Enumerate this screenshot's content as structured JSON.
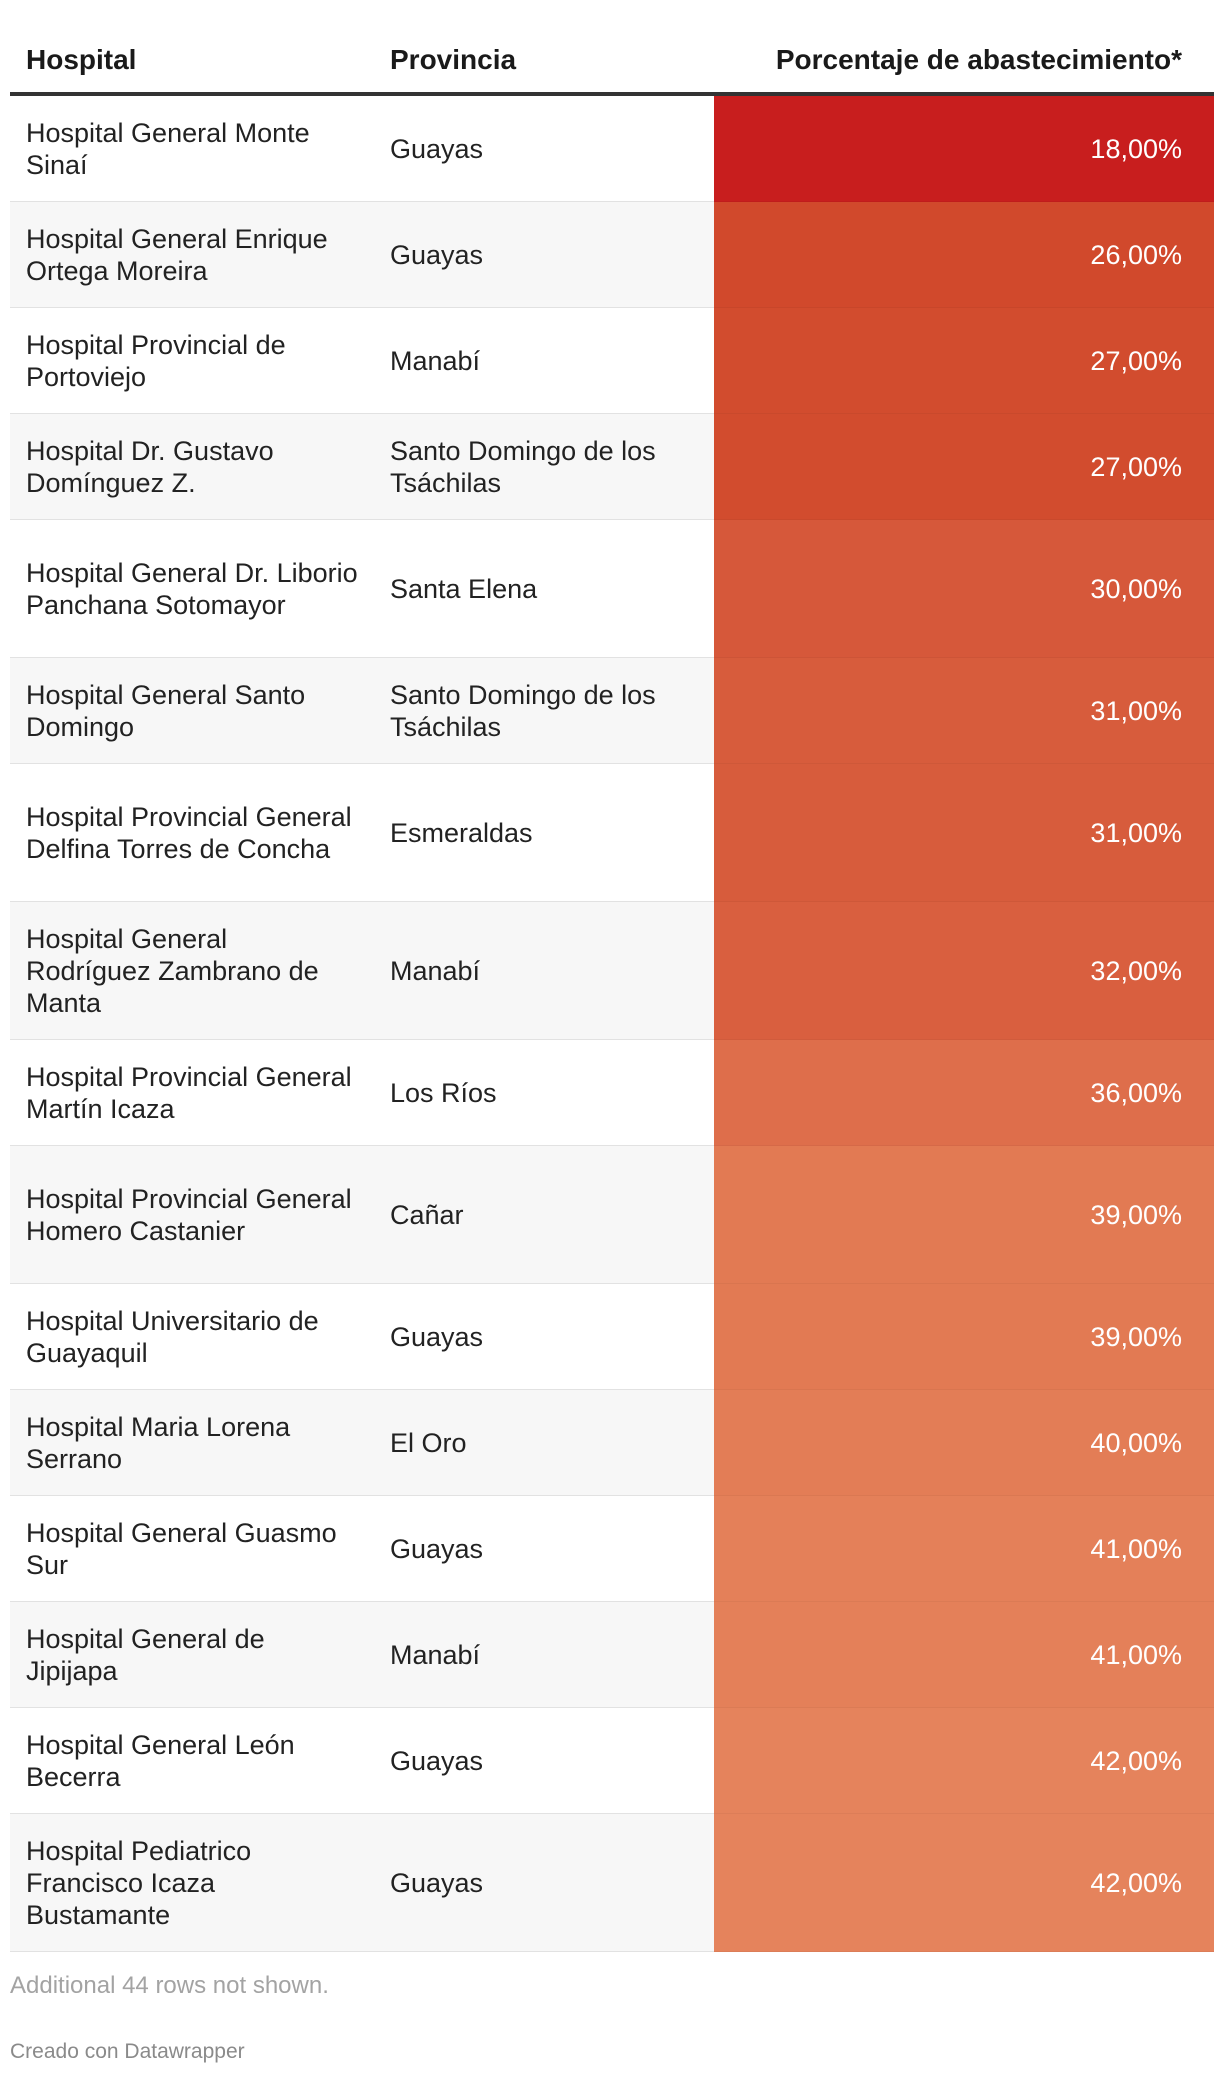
{
  "table": {
    "headers": {
      "hospital": "Hospital",
      "provincia": "Provincia",
      "porcentaje": "Porcentaje de abastecimiento*"
    },
    "rows": [
      {
        "hospital": "Hospital General Monte Sinaí",
        "provincia": "Guayas",
        "porcentaje": "18,00%",
        "value": 18,
        "color": "#c81e1e"
      },
      {
        "hospital": "Hospital General Enrique Ortega Moreira",
        "provincia": "Guayas",
        "porcentaje": "26,00%",
        "value": 26,
        "color": "#d1492c"
      },
      {
        "hospital": "Hospital Provincial de Portoviejo",
        "provincia": "Manabí",
        "porcentaje": "27,00%",
        "value": 27,
        "color": "#d24c2e"
      },
      {
        "hospital": "Hospital Dr. Gustavo Domínguez Z.",
        "provincia": "Santo Domingo de los Tsáchilas",
        "porcentaje": "27,00%",
        "value": 27,
        "color": "#d24c2e"
      },
      {
        "hospital": "Hospital General Dr. Liborio Panchana Sotomayor",
        "provincia": "Santa Elena",
        "porcentaje": "30,00%",
        "value": 30,
        "color": "#d6583a"
      },
      {
        "hospital": "Hospital General Santo Domingo",
        "provincia": "Santo Domingo de los Tsáchilas",
        "porcentaje": "31,00%",
        "value": 31,
        "color": "#d75c3c"
      },
      {
        "hospital": "Hospital Provincial General Delfina Torres de Concha",
        "provincia": "Esmeraldas",
        "porcentaje": "31,00%",
        "value": 31,
        "color": "#d75c3c"
      },
      {
        "hospital": "Hospital General Rodríguez Zambrano de Manta",
        "provincia": "Manabí",
        "porcentaje": "32,00%",
        "value": 32,
        "color": "#d95f3f"
      },
      {
        "hospital": "Hospital Provincial General Martín Icaza",
        "provincia": "Los Ríos",
        "porcentaje": "36,00%",
        "value": 36,
        "color": "#de6e4b"
      },
      {
        "hospital": "Hospital Provincial General Homero Castanier",
        "provincia": "Cañar",
        "porcentaje": "39,00%",
        "value": 39,
        "color": "#e27a53"
      },
      {
        "hospital": "Hospital Universitario de Guayaquil",
        "provincia": "Guayas",
        "porcentaje": "39,00%",
        "value": 39,
        "color": "#e27a53"
      },
      {
        "hospital": "Hospital Maria Lorena Serrano",
        "provincia": "El Oro",
        "porcentaje": "40,00%",
        "value": 40,
        "color": "#e37d56"
      },
      {
        "hospital": "Hospital General Guasmo Sur",
        "provincia": "Guayas",
        "porcentaje": "41,00%",
        "value": 41,
        "color": "#e48059"
      },
      {
        "hospital": "Hospital General de Jipijapa",
        "provincia": "Manabí",
        "porcentaje": "41,00%",
        "value": 41,
        "color": "#e48059"
      },
      {
        "hospital": "Hospital General León Becerra",
        "provincia": "Guayas",
        "porcentaje": "42,00%",
        "value": 42,
        "color": "#e5835c"
      },
      {
        "hospital": "Hospital Pediatrico Francisco Icaza Bustamante",
        "provincia": "Guayas",
        "porcentaje": "42,00%",
        "value": 42,
        "color": "#e5835c"
      }
    ]
  },
  "footer": {
    "note": "Additional 44 rows not shown.",
    "credit": "Creado con Datawrapper"
  }
}
